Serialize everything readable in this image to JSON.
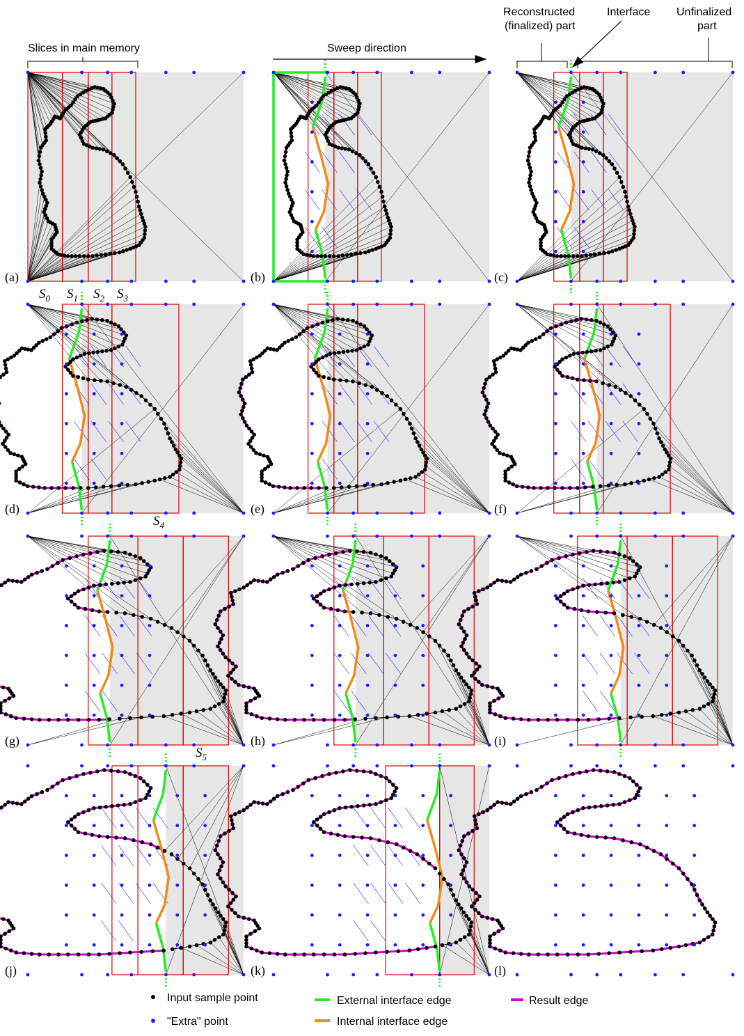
{
  "top_annotations": {
    "slices_in_memory": "Slices in main memory",
    "sweep_direction": "Sweep direction",
    "reconstructed_line1": "Reconstructed",
    "reconstructed_line2": "(finalized) part",
    "interface": "Interface",
    "unfinalized_line1": "Unfinalized",
    "unfinalized_line2": "part"
  },
  "panel_labels": [
    "(a)",
    "(b)",
    "(c)",
    "(d)",
    "(e)",
    "(f)",
    "(g)",
    "(h)",
    "(i)",
    "(j)",
    "(k)",
    "(l)"
  ],
  "slice_labels": {
    "s0": "S",
    "s0_sub": "0",
    "s1": "S",
    "s1_sub": "1",
    "s2": "S",
    "s2_sub": "2",
    "s3": "S",
    "s3_sub": "3",
    "s4": "S",
    "s4_sub": "4",
    "s5": "S",
    "s5_sub": "5"
  },
  "legend": {
    "input_point": "Input sample point",
    "extra_point": "\"Extra\" point",
    "external_edge": "External interface edge",
    "internal_edge": "Internal interface edge",
    "result_edge": "Result edge"
  },
  "colors": {
    "background_region": "#e6e6e6",
    "slice_border": "#e00000",
    "input_point": "#000000",
    "extra_point": "#1a1aff",
    "external_edge": "#22ee22",
    "internal_edge": "#f08a1a",
    "result_edge": "#d400d4",
    "mesh_edge": "#000000",
    "extra_mesh_edge": "#1a1aff"
  }
}
